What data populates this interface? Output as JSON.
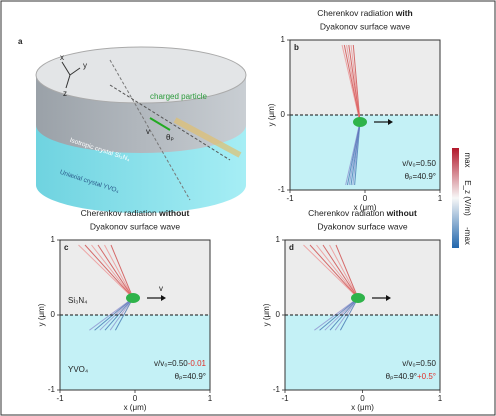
{
  "panel_a": {
    "label": "a",
    "axes": [
      "x",
      "y",
      "z"
    ],
    "particle": "charged particle",
    "velocity": "v",
    "angle": "θₚ",
    "layer_top": "Isotropic crystal Si₃N₄",
    "layer_bottom": "Uniaxial crystal YVO₄"
  },
  "panel_b": {
    "label": "b",
    "title": [
      "Cherenkov radiation ",
      "with"
    ],
    "subtitle": "Dyakonov surface wave",
    "yticks": [
      1,
      0,
      -1
    ],
    "xticks": [
      -1,
      0,
      1
    ],
    "ylabel": "y (μm)",
    "xlabel": "x (μm)",
    "speed": [
      "v/v₀=0.50"
    ],
    "angle": [
      "θₚ=40.9°"
    ]
  },
  "panel_c": {
    "label": "c",
    "title": [
      "Cherenkov radiation ",
      "without"
    ],
    "subtitle": "Dyakonov surface wave",
    "yticks": [
      1,
      0,
      -1
    ],
    "xticks": [
      -1,
      0,
      1
    ],
    "ylabel": "y (μm)",
    "xlabel": "x (μm)",
    "speed": [
      "v/v₀=0.50",
      "-0.01"
    ],
    "angle": [
      "θₚ=40.9°"
    ],
    "top_material": "Si₃N₄",
    "bottom_material": "YVO₄",
    "velocity": "v"
  },
  "panel_d": {
    "label": "d",
    "title": [
      "Cherenkov radiation ",
      "without"
    ],
    "subtitle": "Dyakonov surface wave",
    "yticks": [
      1,
      0,
      -1
    ],
    "xticks": [
      -1,
      0,
      1
    ],
    "ylabel": "y (μm)",
    "xlabel": "x (μm)",
    "speed": [
      "v/v₀=0.50"
    ],
    "angle": [
      "θₚ=40.9°",
      "+0.5°"
    ]
  },
  "colorbar": {
    "max": "max",
    "label": "E_z (V/m)",
    "min": "-max"
  }
}
